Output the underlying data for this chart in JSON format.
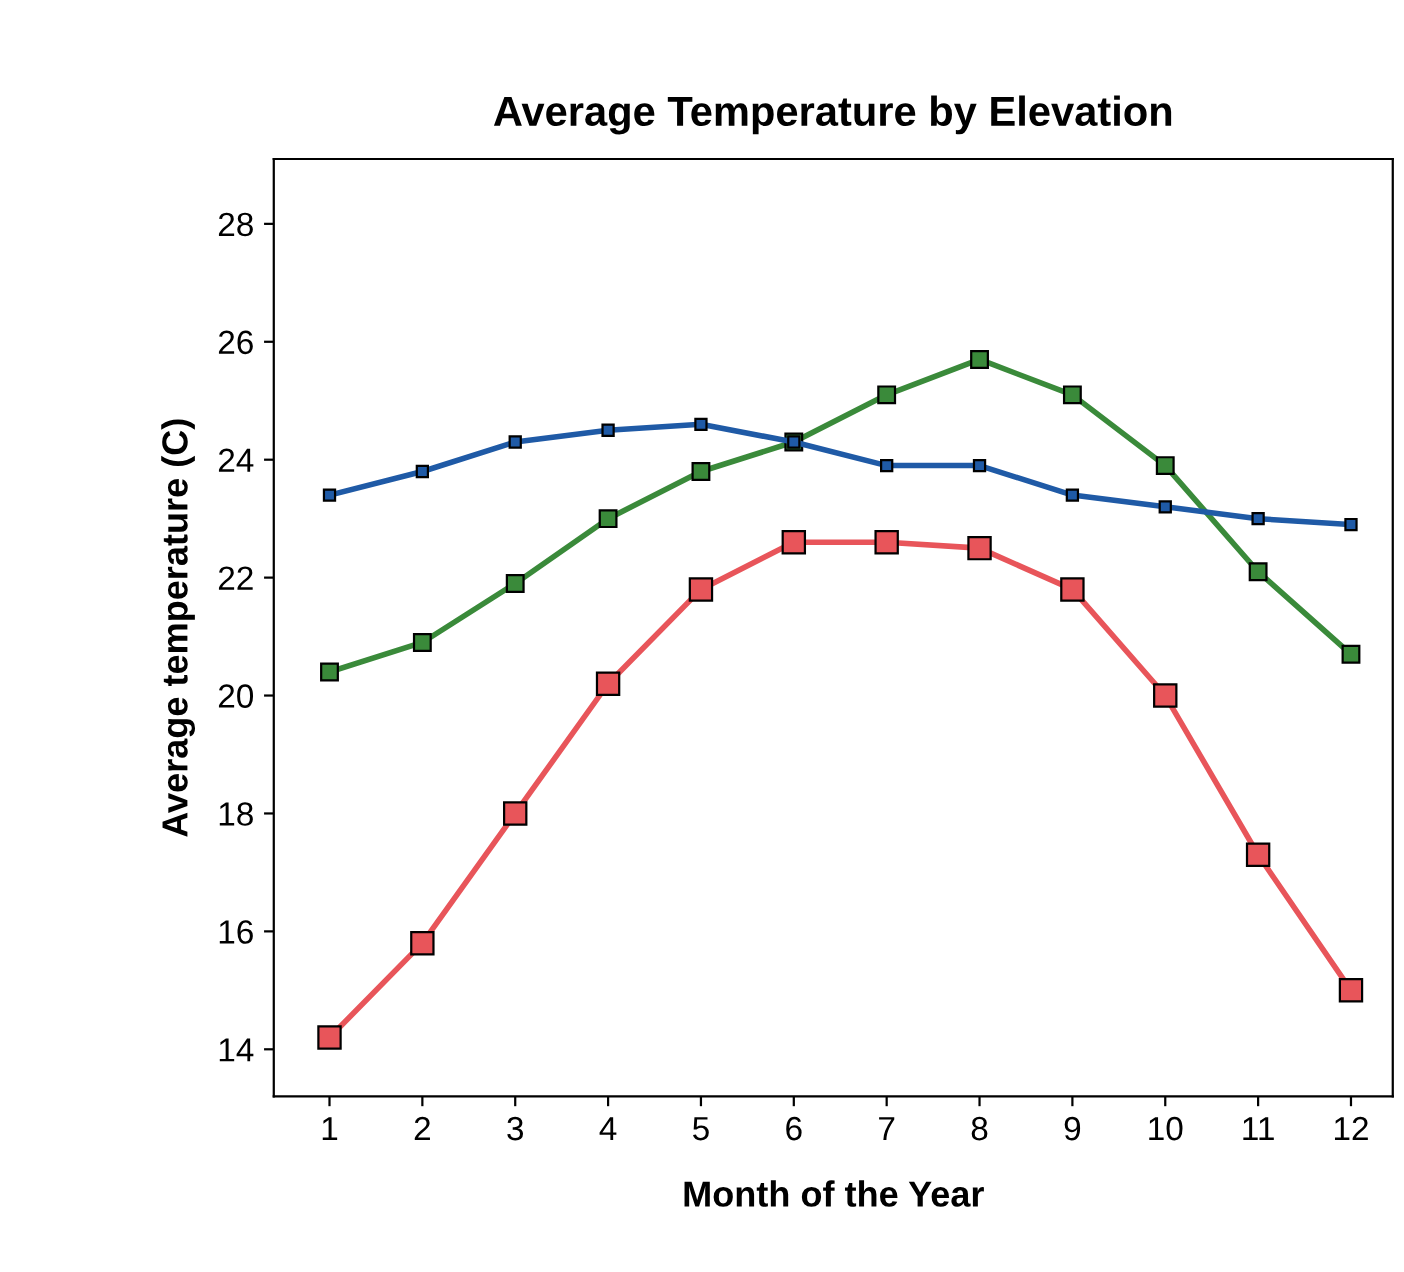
{
  "chart_data": {
    "type": "line",
    "title": "Average Temperature by Elevation",
    "xlabel": "Month of the Year",
    "ylabel": "Average temperature (C)",
    "x": [
      1,
      2,
      3,
      4,
      5,
      6,
      7,
      8,
      9,
      10,
      11,
      12
    ],
    "series": [
      {
        "color": "#1f5aa6",
        "values": [
          23.4,
          23.8,
          24.3,
          24.5,
          24.6,
          24.3,
          23.9,
          23.9,
          23.4,
          23.2,
          23.0,
          22.9
        ]
      },
      {
        "color": "#3a8a3a",
        "values": [
          20.4,
          20.9,
          21.9,
          23.0,
          23.8,
          24.3,
          25.1,
          25.7,
          25.1,
          23.9,
          22.1,
          20.7
        ]
      },
      {
        "color": "#e8555a",
        "values": [
          14.2,
          15.8,
          18.0,
          20.2,
          21.8,
          22.6,
          22.6,
          22.5,
          21.8,
          20.0,
          17.3,
          15.0
        ]
      }
    ],
    "xlim": [
      0.4,
      12.45
    ],
    "ylim": [
      13.2,
      29.1
    ],
    "xticks": [
      1,
      2,
      3,
      4,
      5,
      6,
      7,
      8,
      9,
      10,
      11,
      12
    ],
    "yticks": [
      14,
      16,
      18,
      20,
      22,
      24,
      26,
      28
    ],
    "marker": "square",
    "grid": false,
    "legend": false
  }
}
